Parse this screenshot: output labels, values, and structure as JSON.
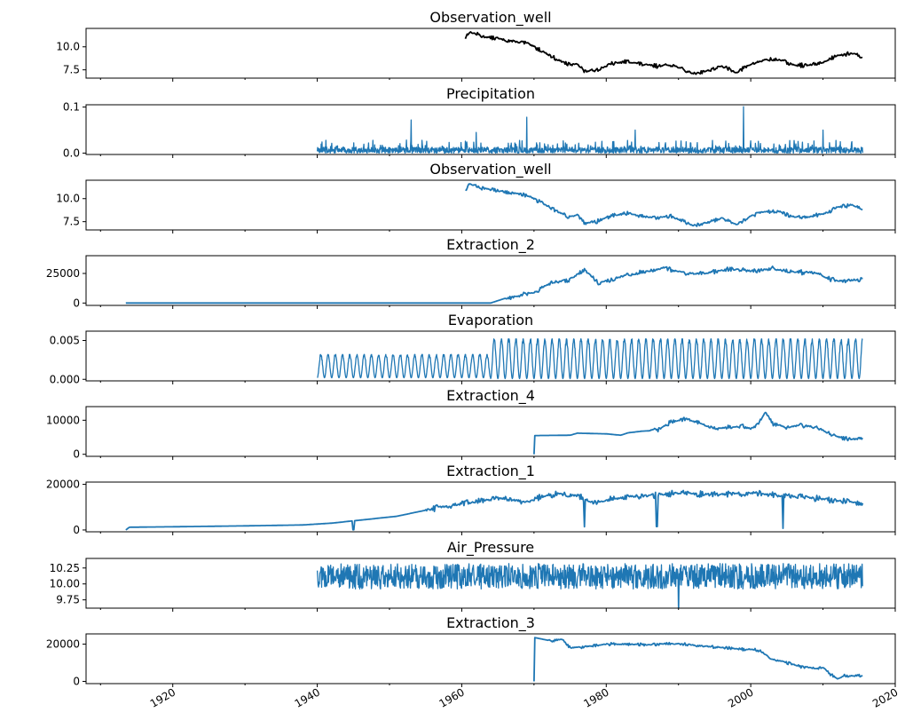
{
  "chart_data": {
    "type": "line",
    "xlim": [
      1908,
      2020
    ],
    "xticks": [
      1920,
      1940,
      1960,
      1980,
      2000,
      2020
    ],
    "xtick_labels": [
      "1920",
      "1940",
      "1960",
      "1980",
      "2000",
      "2020"
    ],
    "panels": [
      {
        "title": "Observation_well",
        "color": "#000000",
        "ylim": [
          6.6,
          12.0
        ],
        "yticks": [
          7.5,
          10.0
        ],
        "ytick_labels": [
          "7.5",
          "10.0"
        ],
        "style": "line",
        "points": [
          [
            1960.5,
            11.0
          ],
          [
            1961,
            11.6
          ],
          [
            1962,
            11.4
          ],
          [
            1963,
            11.1
          ],
          [
            1965,
            10.9
          ],
          [
            1967,
            10.6
          ],
          [
            1969,
            10.4
          ],
          [
            1971,
            9.6
          ],
          [
            1973,
            8.7
          ],
          [
            1975,
            8.0
          ],
          [
            1976,
            8.2
          ],
          [
            1977,
            7.3
          ],
          [
            1979,
            7.6
          ],
          [
            1981,
            8.2
          ],
          [
            1983,
            8.4
          ],
          [
            1985,
            8.1
          ],
          [
            1987,
            7.9
          ],
          [
            1989,
            8.1
          ],
          [
            1991,
            7.4
          ],
          [
            1992,
            7.1
          ],
          [
            1994,
            7.4
          ],
          [
            1996,
            7.9
          ],
          [
            1998,
            7.2
          ],
          [
            2000,
            8.1
          ],
          [
            2002,
            8.6
          ],
          [
            2004,
            8.6
          ],
          [
            2006,
            8.0
          ],
          [
            2008,
            8.0
          ],
          [
            2010,
            8.3
          ],
          [
            2012,
            9.1
          ],
          [
            2014,
            9.3
          ],
          [
            2015.5,
            8.9
          ]
        ],
        "noise": 0.25
      },
      {
        "title": "Precipitation",
        "color": "#1f77b4",
        "ylim": [
          -0.003,
          0.105
        ],
        "yticks": [
          0.0,
          0.1
        ],
        "ytick_labels": [
          "0.0",
          "0.1"
        ],
        "style": "spiky",
        "x_range": [
          1940,
          2015.5
        ],
        "base": 0.013,
        "spikes": [
          [
            1953,
            0.072
          ],
          [
            1969,
            0.078
          ],
          [
            1999,
            0.101
          ],
          [
            1984,
            0.05
          ],
          [
            1962,
            0.045
          ],
          [
            2010,
            0.05
          ]
        ]
      },
      {
        "title": "Observation_well",
        "color": "#1f77b4",
        "ylim": [
          6.6,
          12.0
        ],
        "yticks": [
          7.5,
          10.0
        ],
        "ytick_labels": [
          "7.5",
          "10.0"
        ],
        "style": "line",
        "points": [
          [
            1960.5,
            11.0
          ],
          [
            1961,
            11.6
          ],
          [
            1962,
            11.4
          ],
          [
            1963,
            11.1
          ],
          [
            1965,
            10.9
          ],
          [
            1967,
            10.6
          ],
          [
            1969,
            10.4
          ],
          [
            1971,
            9.6
          ],
          [
            1973,
            8.7
          ],
          [
            1975,
            8.0
          ],
          [
            1976,
            8.2
          ],
          [
            1977,
            7.3
          ],
          [
            1979,
            7.6
          ],
          [
            1981,
            8.2
          ],
          [
            1983,
            8.4
          ],
          [
            1985,
            8.1
          ],
          [
            1987,
            7.9
          ],
          [
            1989,
            8.1
          ],
          [
            1991,
            7.4
          ],
          [
            1992,
            7.1
          ],
          [
            1994,
            7.4
          ],
          [
            1996,
            7.9
          ],
          [
            1998,
            7.2
          ],
          [
            2000,
            8.1
          ],
          [
            2002,
            8.6
          ],
          [
            2004,
            8.6
          ],
          [
            2006,
            8.0
          ],
          [
            2008,
            8.0
          ],
          [
            2010,
            8.3
          ],
          [
            2012,
            9.1
          ],
          [
            2014,
            9.3
          ],
          [
            2015.5,
            8.9
          ]
        ],
        "noise": 0.25
      },
      {
        "title": "Extraction_2",
        "color": "#1f77b4",
        "ylim": [
          -2000,
          40000
        ],
        "yticks": [
          0,
          25000
        ],
        "ytick_labels": [
          "0",
          "25000"
        ],
        "style": "line",
        "points": [
          [
            1913.5,
            0
          ],
          [
            1964,
            0
          ],
          [
            1964.5,
            1000
          ],
          [
            1966,
            4000
          ],
          [
            1968,
            6000
          ],
          [
            1970,
            9000
          ],
          [
            1972,
            16000
          ],
          [
            1975,
            20000
          ],
          [
            1977,
            28000
          ],
          [
            1979,
            17000
          ],
          [
            1982,
            22000
          ],
          [
            1985,
            26000
          ],
          [
            1988,
            30000
          ],
          [
            1991,
            25000
          ],
          [
            1994,
            25000
          ],
          [
            1997,
            29000
          ],
          [
            2000,
            27000
          ],
          [
            2003,
            29000
          ],
          [
            2006,
            26000
          ],
          [
            2009,
            26000
          ],
          [
            2011,
            20000
          ],
          [
            2013,
            18000
          ],
          [
            2014.5,
            20000
          ],
          [
            2015.5,
            19000
          ]
        ],
        "noise": 2200,
        "noise_from": 1966
      },
      {
        "title": "Evaporation",
        "color": "#1f77b4",
        "ylim": [
          -0.0002,
          0.0062
        ],
        "yticks": [
          0.0,
          0.005
        ],
        "ytick_labels": [
          "0.000",
          "0.005"
        ],
        "style": "seasonal",
        "segments": [
          {
            "x0": 1940,
            "x1": 1964,
            "lo": 0.0002,
            "hi": 0.0032
          },
          {
            "x0": 1964,
            "x1": 2015.5,
            "lo": 0.0001,
            "hi": 0.0052
          }
        ]
      },
      {
        "title": "Extraction_4",
        "color": "#1f77b4",
        "ylim": [
          -600,
          14000
        ],
        "yticks": [
          0,
          10000
        ],
        "ytick_labels": [
          "0",
          "10000"
        ],
        "style": "line",
        "points": [
          [
            1970,
            0
          ],
          [
            1970.1,
            5500
          ],
          [
            1975,
            5600
          ],
          [
            1976,
            6200
          ],
          [
            1980,
            6000
          ],
          [
            1982,
            5600
          ],
          [
            1983,
            6300
          ],
          [
            1985,
            6800
          ],
          [
            1987,
            7000
          ],
          [
            1989,
            9500
          ],
          [
            1991,
            10500
          ],
          [
            1993,
            9000
          ],
          [
            1995,
            7500
          ],
          [
            1997,
            8000
          ],
          [
            1999,
            8200
          ],
          [
            2000,
            7500
          ],
          [
            2001,
            8500
          ],
          [
            2002,
            12500
          ],
          [
            2003,
            9000
          ],
          [
            2005,
            8000
          ],
          [
            2007,
            8500
          ],
          [
            2009,
            8000
          ],
          [
            2011,
            6000
          ],
          [
            2013,
            4500
          ],
          [
            2015.5,
            4500
          ]
        ],
        "noise": 700,
        "noise_from": 1986
      },
      {
        "title": "Extraction_1",
        "color": "#1f77b4",
        "ylim": [
          -800,
          21000
        ],
        "yticks": [
          0,
          20000
        ],
        "ytick_labels": [
          "0",
          "20000"
        ],
        "style": "line",
        "points": [
          [
            1913.5,
            0
          ],
          [
            1914,
            1200
          ],
          [
            1920,
            1400
          ],
          [
            1930,
            1800
          ],
          [
            1938,
            2200
          ],
          [
            1942,
            3000
          ],
          [
            1945,
            4000
          ],
          [
            1948,
            5000
          ],
          [
            1951,
            6000
          ],
          [
            1954,
            8000
          ],
          [
            1957,
            10000
          ],
          [
            1960,
            11500
          ],
          [
            1963,
            13000
          ],
          [
            1966,
            14000
          ],
          [
            1969,
            12000
          ],
          [
            1971,
            14500
          ],
          [
            1973,
            16000
          ],
          [
            1976,
            15000
          ],
          [
            1978,
            12000
          ],
          [
            1980,
            13000
          ],
          [
            1983,
            14500
          ],
          [
            1986,
            15000
          ],
          [
            1989,
            16000
          ],
          [
            1992,
            16000
          ],
          [
            1995,
            15500
          ],
          [
            1998,
            16000
          ],
          [
            2001,
            16000
          ],
          [
            2004,
            15000
          ],
          [
            2007,
            14500
          ],
          [
            2010,
            13500
          ],
          [
            2013,
            12500
          ],
          [
            2015.5,
            11500
          ]
        ],
        "noise": 1500,
        "noise_from": 1955,
        "dips": [
          [
            1945,
            100
          ],
          [
            1977,
            1400
          ],
          [
            1987,
            1500
          ],
          [
            2004.5,
            700
          ]
        ]
      },
      {
        "title": "Air_Pressure",
        "color": "#1f77b4",
        "ylim": [
          9.62,
          10.4
        ],
        "yticks": [
          9.75,
          10.0,
          10.25
        ],
        "ytick_labels": [
          "9.75",
          "10.00",
          "10.25"
        ],
        "style": "band",
        "x_range": [
          1940,
          2015.5
        ],
        "center": 10.12,
        "amp": 0.2,
        "spikes": [
          [
            1990,
            9.62
          ]
        ]
      },
      {
        "title": "Extraction_3",
        "color": "#1f77b4",
        "ylim": [
          -1200,
          25500
        ],
        "yticks": [
          0,
          20000
        ],
        "ytick_labels": [
          "0",
          "20000"
        ],
        "style": "line",
        "points": [
          [
            1970,
            0
          ],
          [
            1970.1,
            23500
          ],
          [
            1972,
            22000
          ],
          [
            1974,
            22500
          ],
          [
            1975,
            18000
          ],
          [
            1978,
            19000
          ],
          [
            1980,
            20000
          ],
          [
            1983,
            20000
          ],
          [
            1986,
            19500
          ],
          [
            1989,
            20500
          ],
          [
            1992,
            19500
          ],
          [
            1995,
            18500
          ],
          [
            1998,
            17500
          ],
          [
            2001,
            17000
          ],
          [
            2003,
            12000
          ],
          [
            2005,
            10000
          ],
          [
            2007,
            8000
          ],
          [
            2009,
            7000
          ],
          [
            2010,
            7500
          ],
          [
            2011,
            4000
          ],
          [
            2012,
            1500
          ],
          [
            2013,
            3000
          ],
          [
            2015.5,
            3000
          ]
        ],
        "noise": 900,
        "noise_from": 1972
      }
    ]
  }
}
